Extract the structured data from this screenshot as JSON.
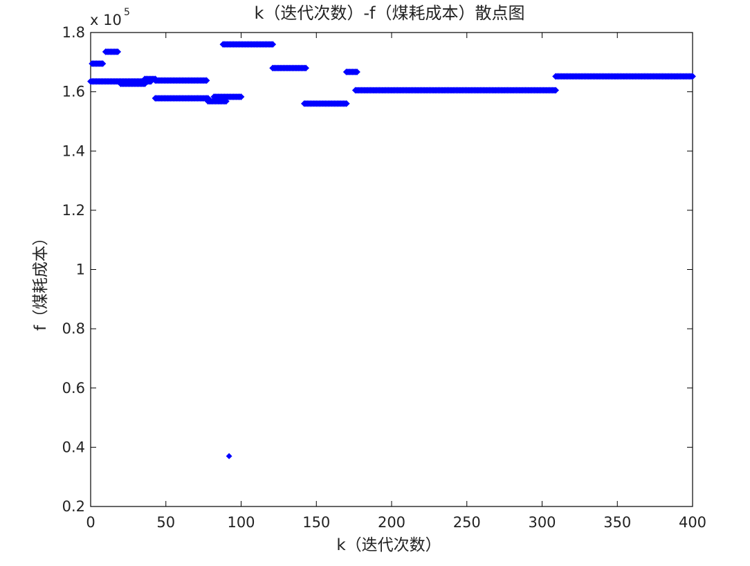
{
  "chart_data": {
    "type": "scatter",
    "title": "k（迭代次数）-f（煤耗成本）散点图",
    "xlabel": "k（迭代次数）",
    "ylabel": "f（煤耗成本）",
    "xlim": [
      0,
      400
    ],
    "ylim": [
      0.2,
      1.8
    ],
    "y_multiplier": {
      "base": "x 10",
      "exponent": "5"
    },
    "x_ticks": [
      0,
      50,
      100,
      150,
      200,
      250,
      300,
      350,
      400
    ],
    "x_tick_labels": [
      "0",
      "50",
      "100",
      "150",
      "200",
      "250",
      "300",
      "350",
      "400"
    ],
    "y_ticks": [
      0.2,
      0.4,
      0.6,
      0.8,
      1.0,
      1.2,
      1.4,
      1.6,
      1.8
    ],
    "y_tick_labels": [
      "0.2",
      "0.4",
      "0.6",
      "0.8",
      "1",
      "1.2",
      "1.4",
      "1.6",
      "1.8"
    ],
    "grid": false,
    "marker_color": "#0000ff",
    "marker": "diamond",
    "segments": [
      {
        "x_start": 1,
        "x_end": 8,
        "y": 1.695
      },
      {
        "x_start": 0,
        "x_end": 40,
        "y": 1.635
      },
      {
        "x_start": 10,
        "x_end": 18,
        "y": 1.735
      },
      {
        "x_start": 20,
        "x_end": 36,
        "y": 1.627
      },
      {
        "x_start": 36,
        "x_end": 43,
        "y": 1.643
      },
      {
        "x_start": 43,
        "x_end": 77,
        "y": 1.638
      },
      {
        "x_start": 43,
        "x_end": 78,
        "y": 1.578
      },
      {
        "x_start": 78,
        "x_end": 90,
        "y": 1.568
      },
      {
        "x_start": 82,
        "x_end": 100,
        "y": 1.583
      },
      {
        "x_start": 88,
        "x_end": 121,
        "y": 1.76
      },
      {
        "x_start": 121,
        "x_end": 143,
        "y": 1.68
      },
      {
        "x_start": 142,
        "x_end": 170,
        "y": 1.56
      },
      {
        "x_start": 170,
        "x_end": 177,
        "y": 1.667
      },
      {
        "x_start": 176,
        "x_end": 309,
        "y": 1.605
      },
      {
        "x_start": 309,
        "x_end": 400,
        "y": 1.652
      }
    ],
    "points": [
      {
        "x": 92,
        "y": 0.37
      }
    ]
  }
}
